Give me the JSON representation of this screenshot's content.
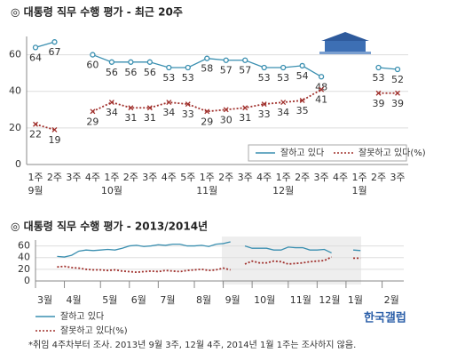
{
  "chart_data": [
    {
      "type": "line",
      "title": "◎  대통령 직무 수행 평가 - 최근 20주",
      "categories": [
        "1주",
        "2주",
        "3주",
        "4주",
        "1주",
        "2주",
        "3주",
        "4주",
        "5주",
        "1주",
        "2주",
        "3주",
        "4주",
        "1주",
        "2주",
        "3주",
        "4주",
        "1주",
        "2주",
        "3주"
      ],
      "month_labels": [
        "9월",
        null,
        null,
        null,
        "10월",
        null,
        null,
        null,
        null,
        "11월",
        null,
        null,
        null,
        "12월",
        null,
        null,
        null,
        "1월",
        null,
        null
      ],
      "series": [
        {
          "name": "잘하고 있다",
          "color": "#3a8fb0",
          "values": [
            64,
            67,
            null,
            60,
            56,
            56,
            56,
            53,
            53,
            58,
            57,
            57,
            53,
            53,
            54,
            48,
            null,
            null,
            53,
            52
          ]
        },
        {
          "name": "잘못하고 있다(%)",
          "color": "#a0302c",
          "values": [
            22,
            19,
            null,
            29,
            34,
            31,
            31,
            34,
            33,
            29,
            30,
            31,
            33,
            34,
            35,
            41,
            null,
            null,
            39,
            39
          ]
        }
      ],
      "ylim": [
        0,
        70
      ],
      "yticks": [
        0,
        20,
        40,
        60
      ],
      "grid": true
    },
    {
      "type": "line",
      "title": "◎  대통령 직무 수행 평가 - 2013/2014년",
      "x": [
        3,
        4,
        5,
        6,
        7,
        8,
        9,
        10,
        11,
        12,
        13,
        14,
        15,
        16,
        17,
        18,
        19,
        20,
        21,
        22,
        23,
        24,
        25,
        26,
        27,
        28,
        29,
        30,
        31,
        32,
        33,
        34,
        35,
        36,
        37,
        38,
        39,
        40,
        41,
        42,
        43,
        44,
        45
      ],
      "series": [
        {
          "name": "잘하고 있다",
          "color": "#3a8fb0",
          "values": [
            42,
            41,
            44,
            51,
            53,
            52,
            53,
            54,
            53,
            56,
            60,
            61,
            59,
            60,
            62,
            61,
            63,
            63,
            60,
            60,
            61,
            59,
            63,
            64,
            67,
            null,
            60,
            56,
            56,
            56,
            53,
            53,
            58,
            57,
            57,
            53,
            53,
            54,
            48,
            null,
            null,
            53,
            52
          ]
        },
        {
          "name": "잘못하고 있다(%)",
          "color": "#a0302c",
          "values": [
            24,
            25,
            23,
            22,
            20,
            19,
            19,
            18,
            19,
            17,
            16,
            15,
            16,
            17,
            16,
            18,
            17,
            16,
            18,
            19,
            20,
            18,
            19,
            22,
            19,
            null,
            29,
            34,
            31,
            31,
            34,
            33,
            29,
            30,
            31,
            33,
            34,
            35,
            41,
            null,
            null,
            39,
            39
          ]
        }
      ],
      "xlim": [
        0,
        51
      ],
      "xticks": [
        {
          "value": 0,
          "label": "3월"
        },
        {
          "value": 4,
          "label": "4월"
        },
        {
          "value": 9,
          "label": "5월"
        },
        {
          "value": 13,
          "label": "6월"
        },
        {
          "value": 17,
          "label": "7월"
        },
        {
          "value": 22,
          "label": "8월"
        },
        {
          "value": 26,
          "label": "9월"
        },
        {
          "value": 30,
          "label": "10월"
        },
        {
          "value": 35,
          "label": "11월"
        },
        {
          "value": 39,
          "label": "12월"
        },
        {
          "value": 43,
          "label": "1월"
        },
        {
          "value": 48,
          "label": "2월"
        }
      ],
      "ylim": [
        0,
        70
      ],
      "yticks": [
        0,
        20,
        40,
        60
      ],
      "grid": true
    }
  ],
  "logo": "한국갤럽",
  "footnote": "*취임 4주차부터 조사. 2013년 9월 3주, 12월 4주, 2014년 1월 1주는 조사하지 않음."
}
